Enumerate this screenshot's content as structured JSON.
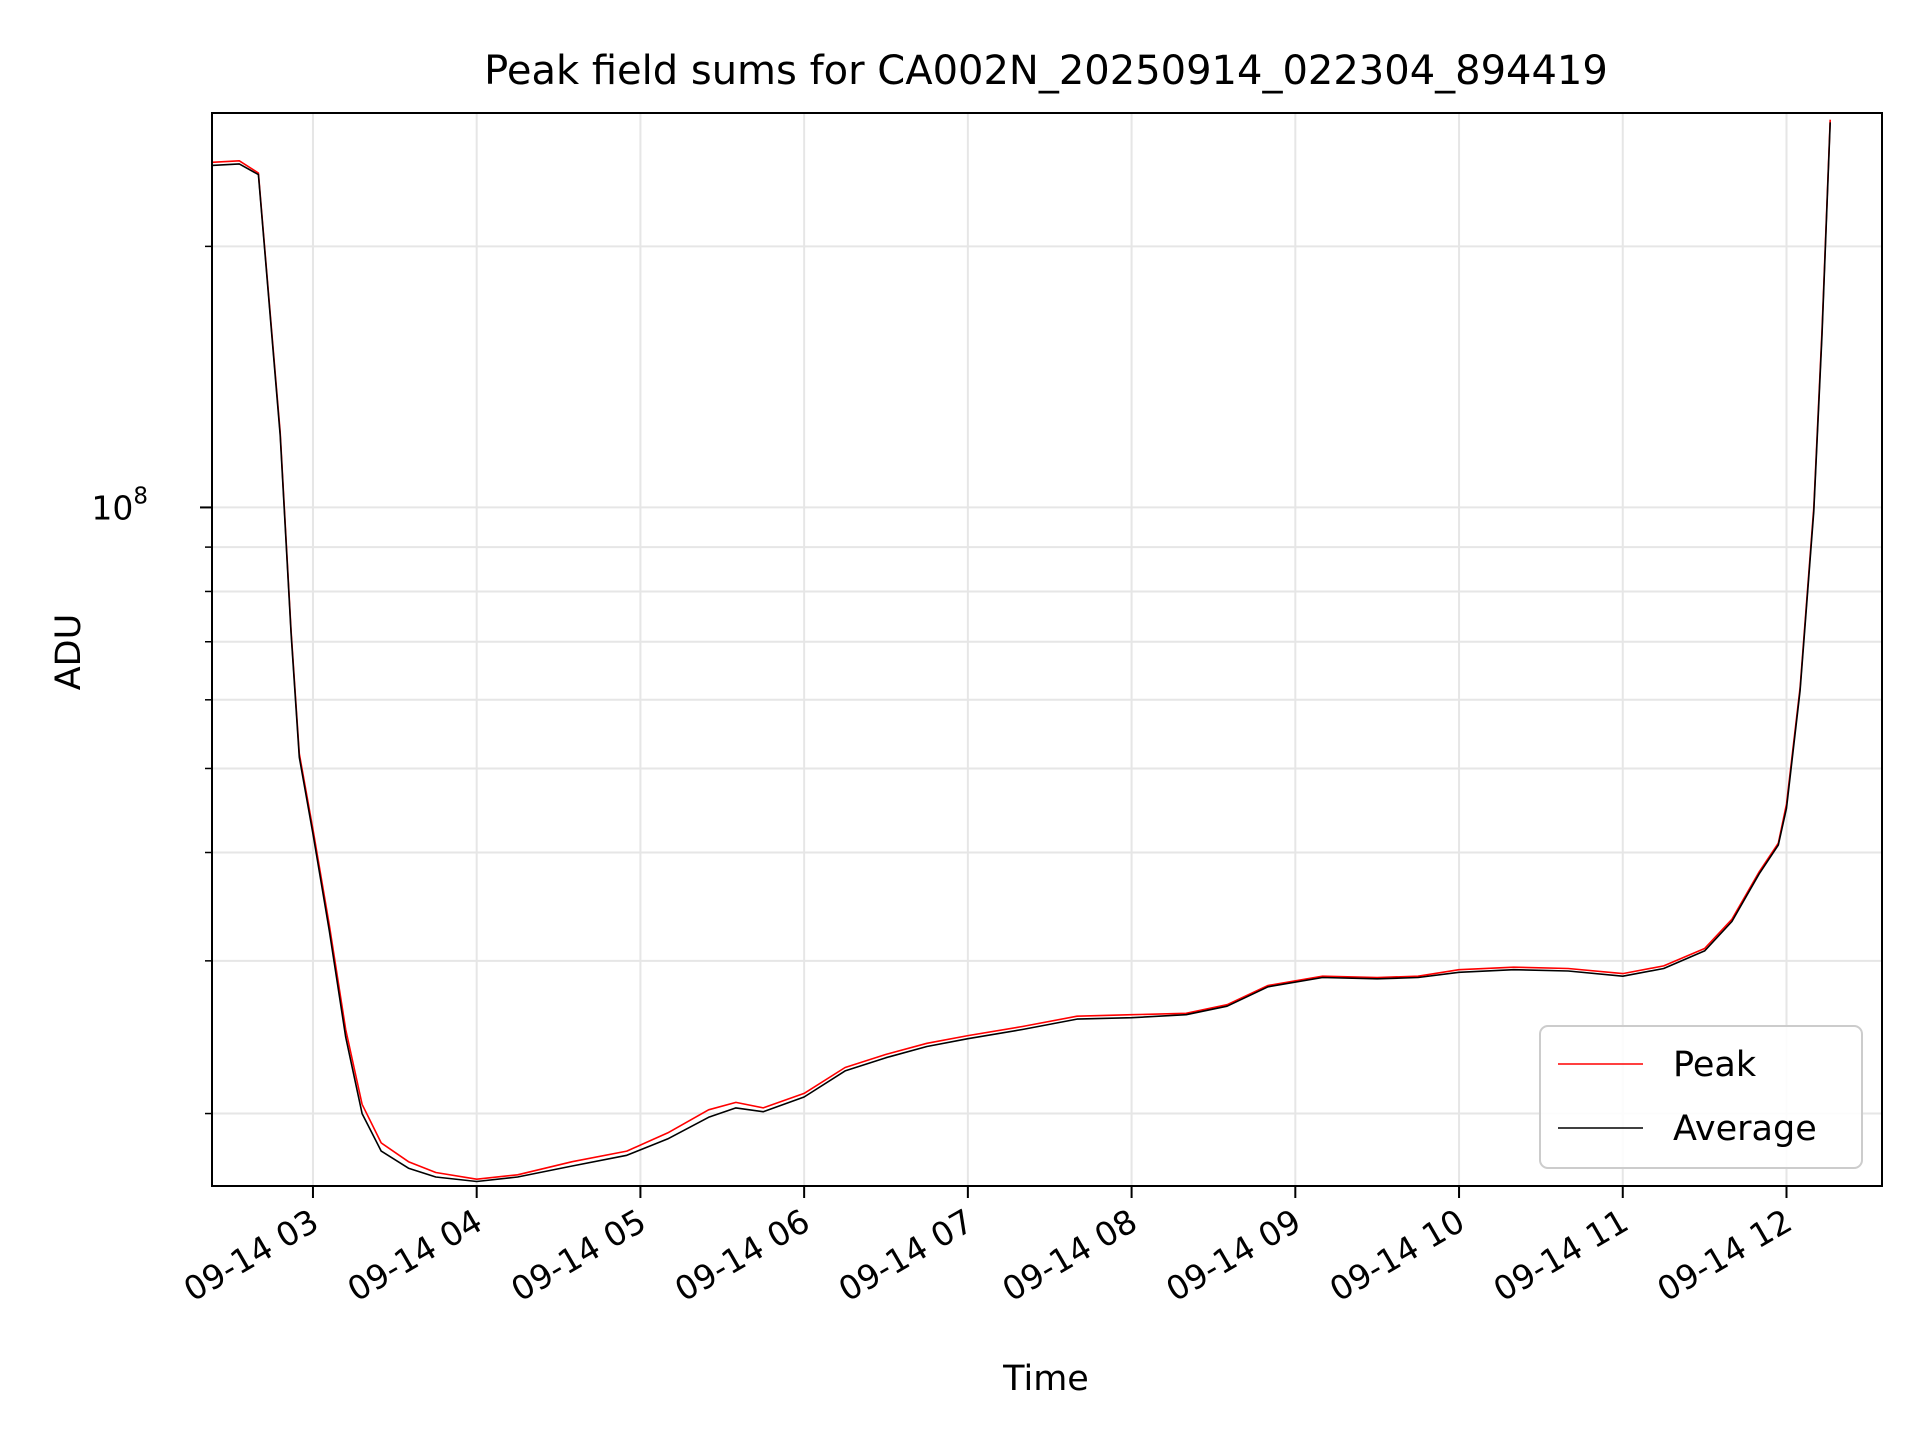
{
  "chart_data": {
    "type": "line",
    "title": "Peak field sums for CA002N_20250914_022304_894419",
    "xlabel": "Time",
    "ylabel": "ADU",
    "y_scale": "log",
    "y_tick_label": {
      "base": "10",
      "exponent": "8"
    },
    "xlim": [
      "2025-09-14 02:23",
      "2025-09-14 12:35"
    ],
    "ylim": [
      16500000,
      285000000
    ],
    "x_tick_labels": [
      "09-14 03",
      "09-14 04",
      "09-14 05",
      "09-14 06",
      "09-14 07",
      "09-14 08",
      "09-14 09",
      "09-14 10",
      "09-14 11",
      "09-14 12"
    ],
    "x_ticks": [
      "2025-09-14 03:00",
      "2025-09-14 04:00",
      "2025-09-14 05:00",
      "2025-09-14 06:00",
      "2025-09-14 07:00",
      "2025-09-14 08:00",
      "2025-09-14 09:00",
      "2025-09-14 10:00",
      "2025-09-14 11:00",
      "2025-09-14 12:00"
    ],
    "grid": true,
    "legend_position": "lower-right",
    "series": [
      {
        "name": "Peak",
        "color": "#ff0000",
        "points": [
          [
            "2025-09-14 02:23",
            250000000
          ],
          [
            "2025-09-14 02:33",
            251000000
          ],
          [
            "2025-09-14 02:40",
            243000000
          ],
          [
            "2025-09-14 02:48",
            122000000
          ],
          [
            "2025-09-14 02:52",
            72000000
          ],
          [
            "2025-09-14 02:55",
            52000000
          ],
          [
            "2025-09-14 03:00",
            42500000
          ],
          [
            "2025-09-14 03:06",
            33000000
          ],
          [
            "2025-09-14 03:12",
            25000000
          ],
          [
            "2025-09-14 03:18",
            20500000
          ],
          [
            "2025-09-14 03:25",
            18500000
          ],
          [
            "2025-09-14 03:35",
            17600000
          ],
          [
            "2025-09-14 03:45",
            17100000
          ],
          [
            "2025-09-14 04:00",
            16800000
          ],
          [
            "2025-09-14 04:15",
            17000000
          ],
          [
            "2025-09-14 04:35",
            17600000
          ],
          [
            "2025-09-14 04:55",
            18100000
          ],
          [
            "2025-09-14 05:10",
            19000000
          ],
          [
            "2025-09-14 05:25",
            20200000
          ],
          [
            "2025-09-14 05:35",
            20600000
          ],
          [
            "2025-09-14 05:45",
            20300000
          ],
          [
            "2025-09-14 06:00",
            21100000
          ],
          [
            "2025-09-14 06:15",
            22600000
          ],
          [
            "2025-09-14 06:30",
            23400000
          ],
          [
            "2025-09-14 06:45",
            24100000
          ],
          [
            "2025-09-14 07:00",
            24600000
          ],
          [
            "2025-09-14 07:20",
            25200000
          ],
          [
            "2025-09-14 07:40",
            25900000
          ],
          [
            "2025-09-14 08:00",
            26000000
          ],
          [
            "2025-09-14 08:20",
            26100000
          ],
          [
            "2025-09-14 08:35",
            26700000
          ],
          [
            "2025-09-14 08:50",
            28100000
          ],
          [
            "2025-09-14 09:10",
            28800000
          ],
          [
            "2025-09-14 09:30",
            28700000
          ],
          [
            "2025-09-14 09:45",
            28800000
          ],
          [
            "2025-09-14 10:00",
            29300000
          ],
          [
            "2025-09-14 10:20",
            29500000
          ],
          [
            "2025-09-14 10:40",
            29400000
          ],
          [
            "2025-09-14 11:00",
            29000000
          ],
          [
            "2025-09-14 11:15",
            29600000
          ],
          [
            "2025-09-14 11:30",
            31000000
          ],
          [
            "2025-09-14 11:40",
            33500000
          ],
          [
            "2025-09-14 11:50",
            38000000
          ],
          [
            "2025-09-14 11:57",
            41000000
          ],
          [
            "2025-09-14 12:00",
            45500000
          ],
          [
            "2025-09-14 12:05",
            62000000
          ],
          [
            "2025-09-14 12:10",
            100000000
          ],
          [
            "2025-09-14 12:13",
            160000000
          ],
          [
            "2025-09-14 12:16",
            280000000
          ]
        ]
      },
      {
        "name": "Average",
        "color": "#000000",
        "points": [
          [
            "2025-09-14 02:23",
            248000000
          ],
          [
            "2025-09-14 02:33",
            249000000
          ],
          [
            "2025-09-14 02:40",
            242000000
          ],
          [
            "2025-09-14 02:48",
            121000000
          ],
          [
            "2025-09-14 02:52",
            71500000
          ],
          [
            "2025-09-14 02:55",
            51500000
          ],
          [
            "2025-09-14 03:00",
            42000000
          ],
          [
            "2025-09-14 03:06",
            32500000
          ],
          [
            "2025-09-14 03:12",
            24500000
          ],
          [
            "2025-09-14 03:18",
            20000000
          ],
          [
            "2025-09-14 03:25",
            18100000
          ],
          [
            "2025-09-14 03:35",
            17300000
          ],
          [
            "2025-09-14 03:45",
            16900000
          ],
          [
            "2025-09-14 04:00",
            16700000
          ],
          [
            "2025-09-14 04:15",
            16900000
          ],
          [
            "2025-09-14 04:35",
            17400000
          ],
          [
            "2025-09-14 04:55",
            17900000
          ],
          [
            "2025-09-14 05:10",
            18700000
          ],
          [
            "2025-09-14 05:25",
            19800000
          ],
          [
            "2025-09-14 05:35",
            20300000
          ],
          [
            "2025-09-14 05:45",
            20100000
          ],
          [
            "2025-09-14 06:00",
            20900000
          ],
          [
            "2025-09-14 06:15",
            22400000
          ],
          [
            "2025-09-14 06:30",
            23200000
          ],
          [
            "2025-09-14 06:45",
            23900000
          ],
          [
            "2025-09-14 07:00",
            24400000
          ],
          [
            "2025-09-14 07:20",
            25000000
          ],
          [
            "2025-09-14 07:40",
            25700000
          ],
          [
            "2025-09-14 08:00",
            25800000
          ],
          [
            "2025-09-14 08:20",
            26000000
          ],
          [
            "2025-09-14 08:35",
            26600000
          ],
          [
            "2025-09-14 08:50",
            28000000
          ],
          [
            "2025-09-14 09:10",
            28700000
          ],
          [
            "2025-09-14 09:30",
            28600000
          ],
          [
            "2025-09-14 09:45",
            28700000
          ],
          [
            "2025-09-14 10:00",
            29100000
          ],
          [
            "2025-09-14 10:20",
            29300000
          ],
          [
            "2025-09-14 10:40",
            29200000
          ],
          [
            "2025-09-14 11:00",
            28800000
          ],
          [
            "2025-09-14 11:15",
            29400000
          ],
          [
            "2025-09-14 11:30",
            30800000
          ],
          [
            "2025-09-14 11:40",
            33300000
          ],
          [
            "2025-09-14 11:50",
            37800000
          ],
          [
            "2025-09-14 11:57",
            40800000
          ],
          [
            "2025-09-14 12:00",
            45000000
          ],
          [
            "2025-09-14 12:05",
            61500000
          ],
          [
            "2025-09-14 12:10",
            99000000
          ],
          [
            "2025-09-14 12:13",
            158000000
          ],
          [
            "2025-09-14 12:16",
            278000000
          ]
        ]
      }
    ]
  }
}
